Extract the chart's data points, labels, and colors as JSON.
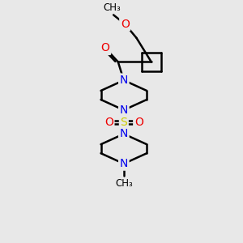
{
  "bg_color": "#e8e8e8",
  "bond_width": 1.8,
  "font_size": 10,
  "atom_colors": {
    "N": "#0000ee",
    "O": "#ee0000",
    "S": "#cccc00",
    "C": "#000000"
  },
  "figsize": [
    3.0,
    3.0
  ],
  "dpi": 100
}
